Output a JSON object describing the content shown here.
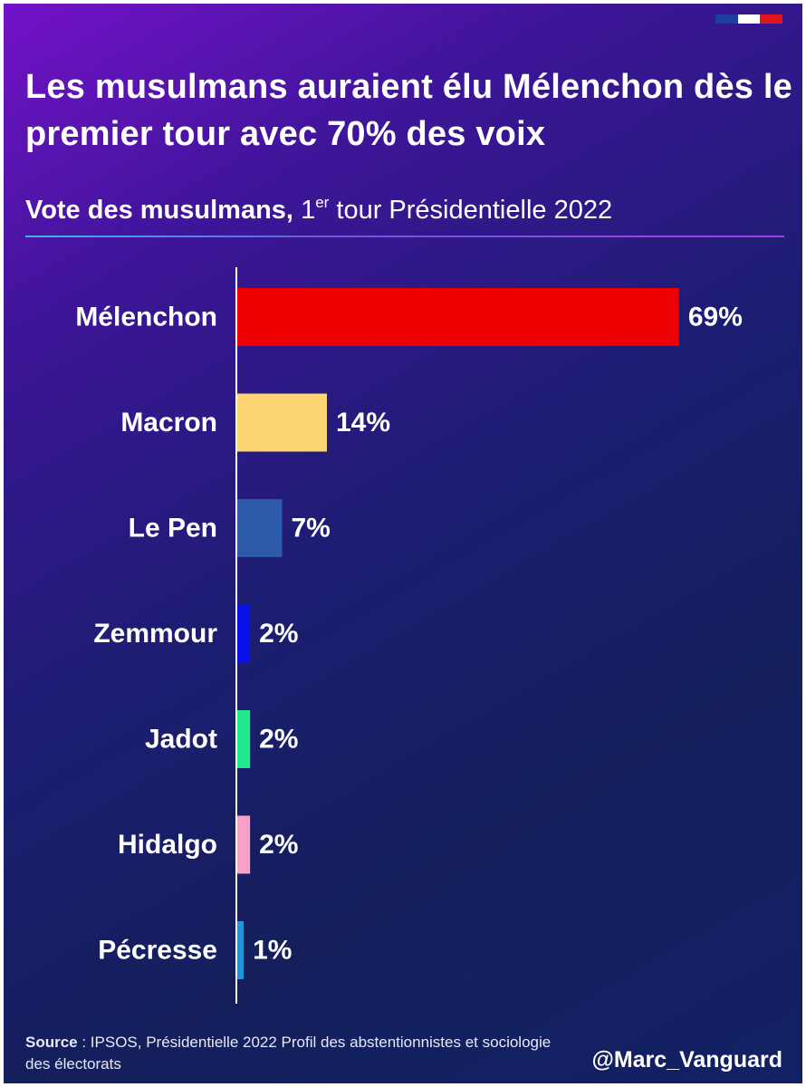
{
  "title": "Les musulmans auraient élu Mélenchon dès le premier tour avec 70% des voix",
  "subtitle": {
    "bold": "Vote des musulmans,",
    "ordinal_number": "1",
    "ordinal_suffix": "er",
    "rest": "tour Présidentielle 2022"
  },
  "flag_colors": [
    "#1f3fa0",
    "#ffffff",
    "#e1171b"
  ],
  "background_colors": [
    "#7412c9",
    "#1c1d72",
    "#122165"
  ],
  "chart_data": {
    "type": "bar",
    "orientation": "horizontal",
    "title": "Vote des musulmans, 1er tour Présidentielle 2022",
    "categories": [
      "Mélenchon",
      "Macron",
      "Le Pen",
      "Zemmour",
      "Jadot",
      "Hidalgo",
      "Pécresse"
    ],
    "values": [
      69,
      14,
      7,
      2,
      2,
      2,
      1
    ],
    "value_labels": [
      "69%",
      "14%",
      "7%",
      "2%",
      "2%",
      "2%",
      "1%"
    ],
    "colors": [
      "#ee0000",
      "#fdd572",
      "#2e5aac",
      "#0a10e8",
      "#22e890",
      "#f7a1c8",
      "#2393d8"
    ],
    "unit": "%",
    "xlim": [
      0,
      70
    ],
    "grid": false,
    "legend": "none"
  },
  "source": {
    "label": "Source",
    "text": " : IPSOS, Présidentielle 2022 Profil des abstentionnistes et sociologie des électorats"
  },
  "handle": "@Marc_Vanguard"
}
